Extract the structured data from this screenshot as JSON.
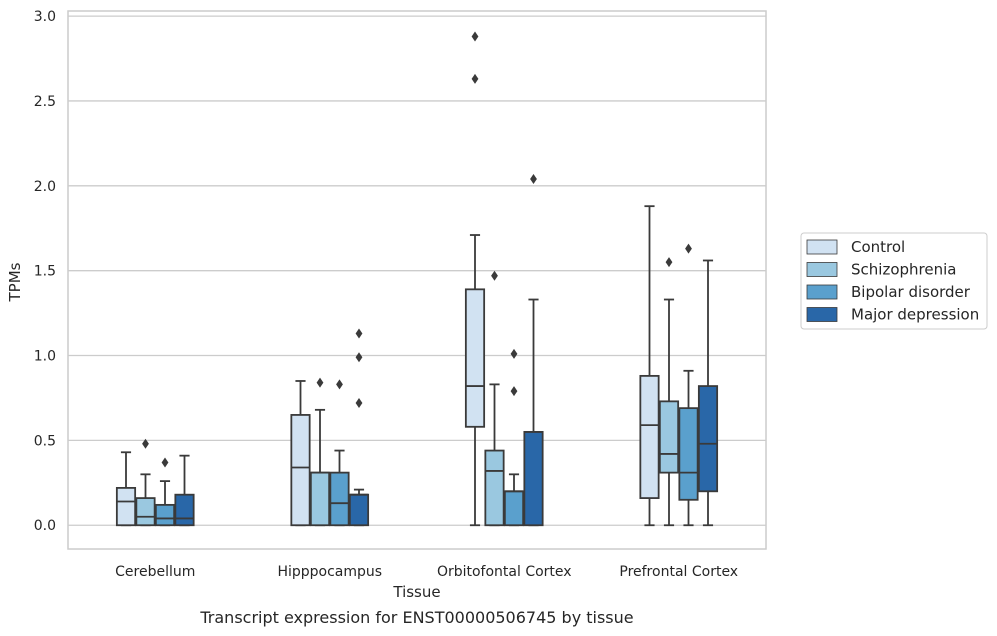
{
  "chart_data": {
    "type": "boxplot",
    "title": "",
    "caption": "Transcript expression for ENST00000506745 by tissue",
    "xlabel": "Tissue",
    "ylabel": "TPMs",
    "ylim": [
      -0.14,
      3.03
    ],
    "yticks": [
      "0.0",
      "0.5",
      "1.0",
      "1.5",
      "2.0",
      "2.5",
      "3.0"
    ],
    "ytick_values": [
      0,
      0.5,
      1.0,
      1.5,
      2.0,
      2.5,
      3.0
    ],
    "grid": "horizontal",
    "legend_position": "right",
    "categories": [
      "Cerebellum",
      "Hipppocampus",
      "Orbitofontal Cortex",
      "Prefrontal Cortex"
    ],
    "series": [
      {
        "name": "Control",
        "color": "#d1e2f2",
        "boxes": [
          {
            "whislo": 0.0,
            "q1": 0.0,
            "med": 0.14,
            "q3": 0.22,
            "whishi": 0.43,
            "fliers": []
          },
          {
            "whislo": 0.0,
            "q1": 0.0,
            "med": 0.34,
            "q3": 0.65,
            "whishi": 0.85,
            "fliers": []
          },
          {
            "whislo": 0.0,
            "q1": 0.58,
            "med": 0.82,
            "q3": 1.39,
            "whishi": 1.71,
            "fliers": [
              2.63,
              2.88
            ]
          },
          {
            "whislo": 0.0,
            "q1": 0.16,
            "med": 0.59,
            "q3": 0.88,
            "whishi": 1.88,
            "fliers": []
          }
        ]
      },
      {
        "name": "Schizophrenia",
        "color": "#9ac8e0",
        "boxes": [
          {
            "whislo": 0.0,
            "q1": 0.0,
            "med": 0.05,
            "q3": 0.16,
            "whishi": 0.3,
            "fliers": [
              0.48
            ]
          },
          {
            "whislo": 0.0,
            "q1": 0.0,
            "med": 0.31,
            "q3": 0.31,
            "whishi": 0.68,
            "fliers": [
              0.84
            ]
          },
          {
            "whislo": 0.0,
            "q1": 0.0,
            "med": 0.32,
            "q3": 0.44,
            "whishi": 0.83,
            "fliers": [
              1.47
            ]
          },
          {
            "whislo": 0.0,
            "q1": 0.31,
            "med": 0.42,
            "q3": 0.73,
            "whishi": 1.33,
            "fliers": [
              1.55
            ]
          }
        ]
      },
      {
        "name": "Bipolar disorder",
        "color": "#5aa0cd",
        "boxes": [
          {
            "whislo": 0.0,
            "q1": 0.0,
            "med": 0.04,
            "q3": 0.12,
            "whishi": 0.26,
            "fliers": [
              0.37
            ]
          },
          {
            "whislo": 0.0,
            "q1": 0.0,
            "med": 0.13,
            "q3": 0.31,
            "whishi": 0.44,
            "fliers": [
              0.83
            ]
          },
          {
            "whislo": 0.0,
            "q1": 0.0,
            "med": 0.2,
            "q3": 0.2,
            "whishi": 0.3,
            "fliers": [
              0.79,
              1.01
            ]
          },
          {
            "whislo": 0.0,
            "q1": 0.15,
            "med": 0.31,
            "q3": 0.69,
            "whishi": 0.91,
            "fliers": [
              1.63
            ]
          }
        ]
      },
      {
        "name": "Major depression",
        "color": "#2967a8",
        "boxes": [
          {
            "whislo": 0.0,
            "q1": 0.0,
            "med": 0.04,
            "q3": 0.18,
            "whishi": 0.41,
            "fliers": []
          },
          {
            "whislo": 0.0,
            "q1": 0.0,
            "med": 0.18,
            "q3": 0.18,
            "whishi": 0.21,
            "fliers": [
              0.72,
              0.99,
              1.13
            ]
          },
          {
            "whislo": 0.0,
            "q1": 0.0,
            "med": 0.55,
            "q3": 0.55,
            "whishi": 1.33,
            "fliers": [
              2.04
            ]
          },
          {
            "whislo": 0.0,
            "q1": 0.2,
            "med": 0.48,
            "q3": 0.82,
            "whishi": 1.56,
            "fliers": []
          }
        ]
      }
    ],
    "colors": {
      "grid": "#cccccc",
      "frame": "#cccccc",
      "lines": "#3a3a3a",
      "text": "#262626"
    }
  }
}
